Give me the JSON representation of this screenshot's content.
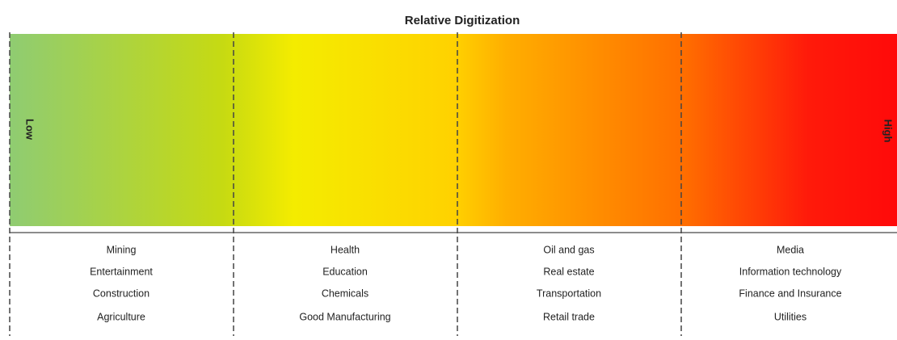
{
  "title": "Relative Digitization",
  "scale": {
    "low": "Low",
    "high": "High"
  },
  "columns": [
    {
      "items": [
        "Mining",
        "Entertainment",
        "Construction",
        "Agriculture"
      ]
    },
    {
      "items": [
        "Health",
        "Education",
        "Chemicals",
        "Good Manufacturing"
      ]
    },
    {
      "items": [
        "Oil and gas",
        "Real estate",
        "Transportation",
        "Retail trade"
      ]
    },
    {
      "items": [
        "Media",
        "Information technology",
        "Finance and Insurance",
        "Utilities"
      ]
    }
  ]
}
